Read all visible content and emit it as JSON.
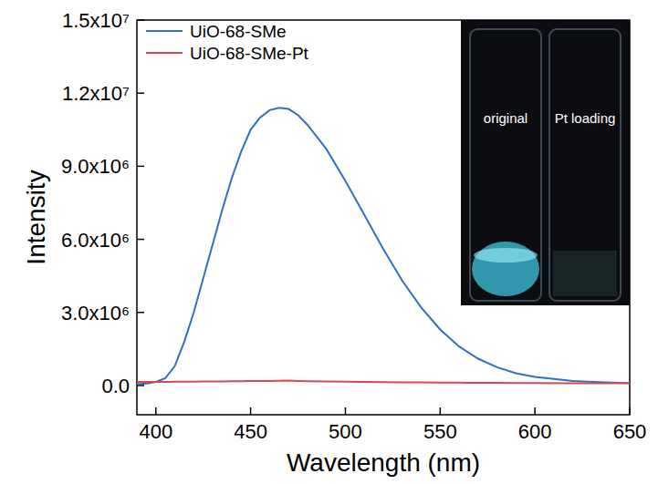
{
  "chart_data": {
    "type": "line",
    "x_label": "Wavelength (nm)",
    "y_label": "Intensity",
    "x": [
      390,
      395,
      400,
      405,
      410,
      415,
      420,
      425,
      430,
      435,
      440,
      445,
      450,
      455,
      460,
      465,
      470,
      475,
      480,
      490,
      500,
      510,
      520,
      530,
      540,
      550,
      560,
      570,
      580,
      590,
      600,
      620,
      640,
      650
    ],
    "series": [
      {
        "name": "UiO-68-SMe",
        "color": "#2f6fc4",
        "values": [
          50000,
          80000,
          150000,
          300000,
          800000,
          1800000,
          3000000,
          4400000,
          5800000,
          7200000,
          8500000,
          9600000,
          10500000,
          11000000,
          11300000,
          11400000,
          11350000,
          11100000,
          10700000,
          9700000,
          8400000,
          7000000,
          5600000,
          4300000,
          3200000,
          2300000,
          1600000,
          1100000,
          750000,
          500000,
          350000,
          180000,
          120000,
          100000
        ]
      },
      {
        "name": "UiO-68-SMe-Pt",
        "color": "#d9484a",
        "values": [
          150000,
          150000,
          150000,
          150000,
          155000,
          160000,
          160000,
          165000,
          170000,
          170000,
          175000,
          175000,
          180000,
          180000,
          185000,
          190000,
          200000,
          185000,
          175000,
          165000,
          155000,
          150000,
          140000,
          130000,
          125000,
          120000,
          115000,
          110000,
          105000,
          100000,
          100000,
          95000,
          90000,
          90000
        ]
      }
    ],
    "xlim": [
      390,
      650
    ],
    "xticks": [
      400,
      450,
      500,
      550,
      600,
      650
    ],
    "ylim": [
      -1200000,
      15000000
    ],
    "yticks": [
      {
        "value": 0,
        "label": "0.0"
      },
      {
        "value": 3000000,
        "label": "3.0x10⁶"
      },
      {
        "value": 6000000,
        "label": "6.0x10⁶"
      },
      {
        "value": 9000000,
        "label": "9.0x10⁶"
      },
      {
        "value": 12000000,
        "label": "1.2x10⁷"
      },
      {
        "value": 15000000,
        "label": "1.5x10⁷"
      }
    ],
    "legend": "upper left",
    "grid": false,
    "inset": {
      "labels": [
        "original",
        "Pt loading"
      ]
    }
  }
}
